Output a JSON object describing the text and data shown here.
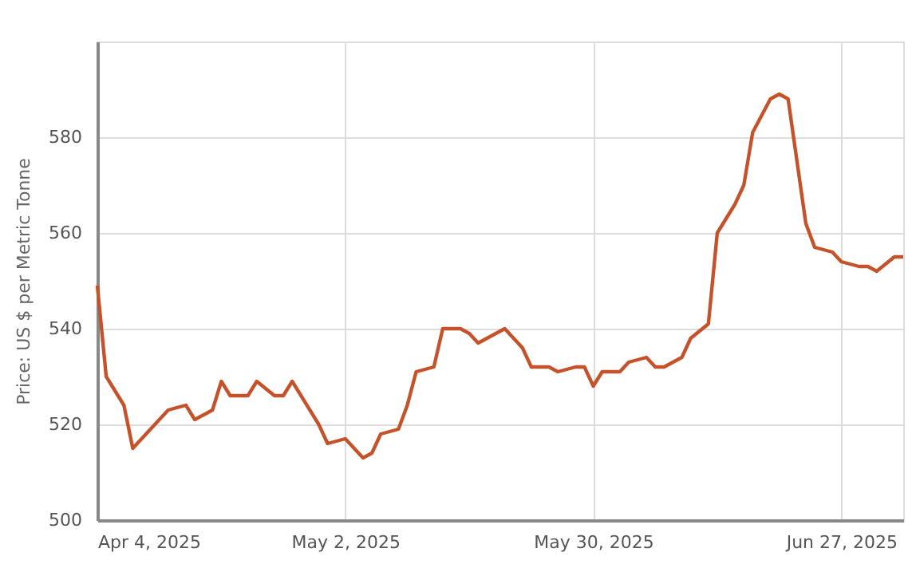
{
  "chart_data": {
    "type": "line",
    "ylabel": "Price: US $ per Metric Tonne",
    "x": [
      "2025-04-04",
      "2025-04-05",
      "2025-04-07",
      "2025-04-08",
      "2025-04-11",
      "2025-04-12",
      "2025-04-14",
      "2025-04-15",
      "2025-04-17",
      "2025-04-18",
      "2025-04-19",
      "2025-04-21",
      "2025-04-22",
      "2025-04-24",
      "2025-04-25",
      "2025-04-26",
      "2025-04-28",
      "2025-04-29",
      "2025-04-30",
      "2025-05-02",
      "2025-05-04",
      "2025-05-05",
      "2025-05-06",
      "2025-05-08",
      "2025-05-09",
      "2025-05-10",
      "2025-05-12",
      "2025-05-13",
      "2025-05-15",
      "2025-05-16",
      "2025-05-17",
      "2025-05-20",
      "2025-05-22",
      "2025-05-23",
      "2025-05-25",
      "2025-05-26",
      "2025-05-28",
      "2025-05-29",
      "2025-05-30",
      "2025-05-31",
      "2025-06-02",
      "2025-06-03",
      "2025-06-05",
      "2025-06-06",
      "2025-06-07",
      "2025-06-09",
      "2025-06-10",
      "2025-06-12",
      "2025-06-13",
      "2025-06-15",
      "2025-06-16",
      "2025-06-17",
      "2025-06-19",
      "2025-06-20",
      "2025-06-21",
      "2025-06-23",
      "2025-06-24",
      "2025-06-26",
      "2025-06-27",
      "2025-06-29",
      "2025-06-30",
      "2025-07-01",
      "2025-07-03",
      "2025-07-04"
    ],
    "series": [
      {
        "color": "#c4532b",
        "values": [
          549,
          530,
          524,
          515,
          521,
          523,
          524,
          521,
          523,
          529,
          526,
          526,
          529,
          526,
          526,
          529,
          523,
          520,
          516,
          517,
          513,
          514,
          518,
          519,
          524,
          531,
          532,
          540,
          540,
          539,
          537,
          540,
          536,
          532,
          532,
          531,
          532,
          532,
          528,
          531,
          531,
          533,
          534,
          532,
          532,
          534,
          538,
          541,
          560,
          566,
          570,
          581,
          588,
          589,
          588,
          562,
          557,
          556,
          554,
          553,
          553,
          552,
          555,
          555
        ]
      }
    ],
    "xlim": [
      "2025-04-04",
      "2025-07-04"
    ],
    "xticks": [
      {
        "value": "2025-04-04",
        "label": "Apr 4, 2025"
      },
      {
        "value": "2025-05-02",
        "label": "May 2, 2025"
      },
      {
        "value": "2025-05-30",
        "label": "May 30, 2025"
      },
      {
        "value": "2025-06-27",
        "label": "Jun 27, 2025"
      }
    ],
    "ylim": [
      500,
      600
    ],
    "yticks": [
      500,
      520,
      540,
      560,
      580
    ],
    "grid": true,
    "marker": "none",
    "line_style": "solid"
  }
}
